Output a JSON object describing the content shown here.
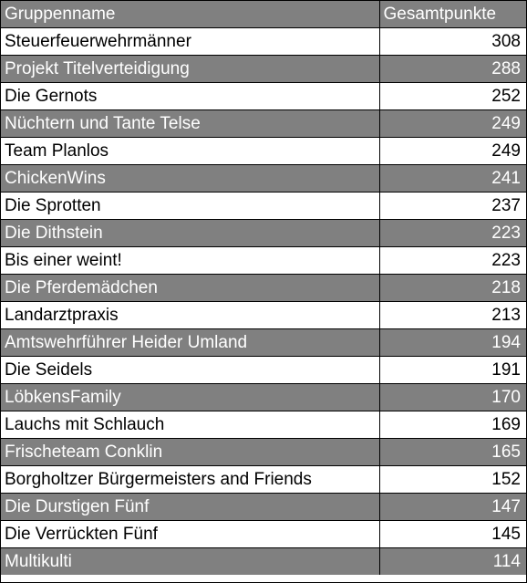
{
  "table": {
    "headers": [
      "Gruppenname",
      "Gesamtpunkte"
    ],
    "rows": [
      {
        "name": "Steuerfeuerwehrmänner",
        "points": "308"
      },
      {
        "name": "Projekt Titelverteidigung",
        "points": "288"
      },
      {
        "name": "Die Gernots",
        "points": "252"
      },
      {
        "name": "Nüchtern und Tante Telse",
        "points": "249"
      },
      {
        "name": "Team Planlos",
        "points": "249"
      },
      {
        "name": "ChickenWins",
        "points": "241"
      },
      {
        "name": "Die Sprotten",
        "points": "237"
      },
      {
        "name": "Die Dithstein",
        "points": "223"
      },
      {
        "name": "Bis einer weint!",
        "points": "223"
      },
      {
        "name": "Die Pferdemädchen",
        "points": "218"
      },
      {
        "name": "Landarztpraxis",
        "points": "213"
      },
      {
        "name": "Amtswehrführer Heider Umland",
        "points": "194"
      },
      {
        "name": "Die Seidels",
        "points": "191"
      },
      {
        "name": "LöbkensFamily",
        "points": "170"
      },
      {
        "name": "Lauchs mit Schlauch",
        "points": "169"
      },
      {
        "name": "Frischeteam Conklin",
        "points": "165"
      },
      {
        "name": "Borgholtzer Bürgermeisters and Friends",
        "points": "152"
      },
      {
        "name": "Die Durstigen Fünf",
        "points": "147"
      },
      {
        "name": "Die Verrückten Fünf",
        "points": "145"
      },
      {
        "name": "Multikulti",
        "points": "114"
      }
    ]
  },
  "colors": {
    "dark_row": "#808080",
    "light_row": "#ffffff",
    "border": "#000000"
  }
}
